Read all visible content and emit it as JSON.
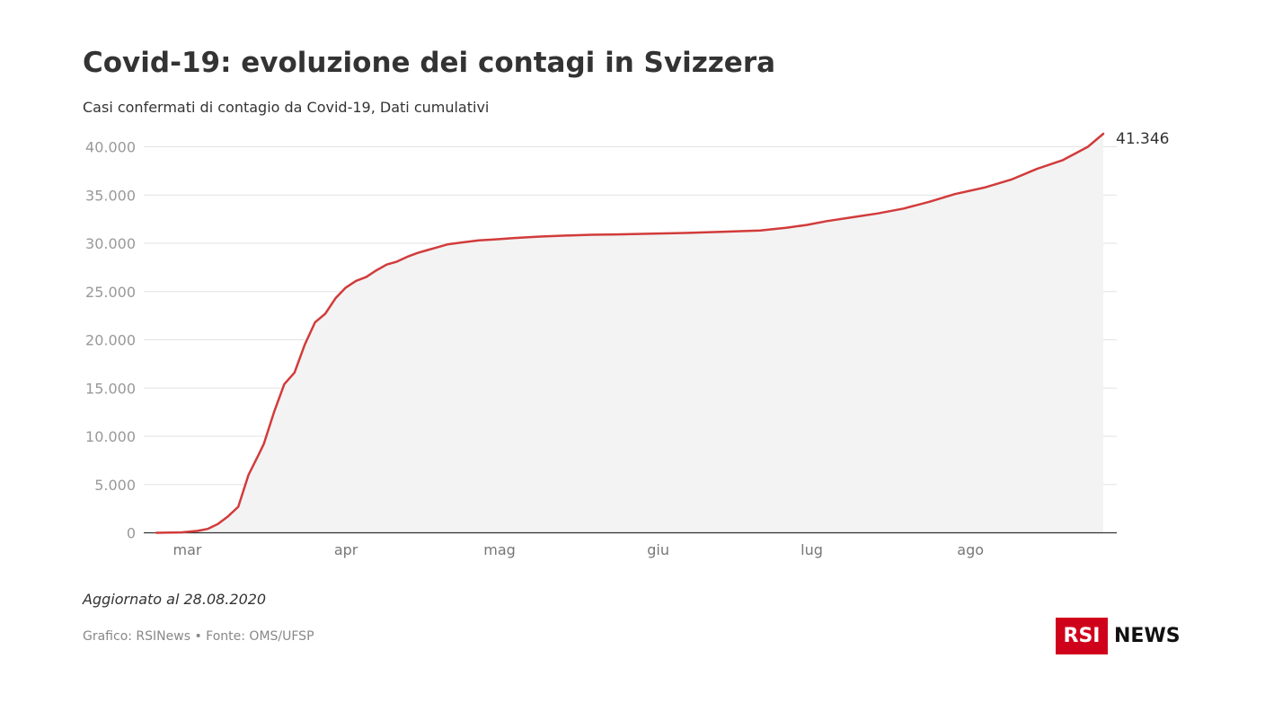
{
  "header": {
    "title": "Covid-19: evoluzione dei contagi in Svizzera",
    "subtitle": "Casi confermati di contagio da Covid-19, Dati cumulativi"
  },
  "footer": {
    "updated": "Aggiornato al 28.08.2020",
    "source": "Grafico: RSINews • Fonte: OMS/UFSP"
  },
  "logo": {
    "box_text": "RSI",
    "text": "NEWS",
    "color": "#d0021b"
  },
  "colors": {
    "line": "#d23b3b",
    "area": "#f3f3f3",
    "grid": "#e2e2e2",
    "axis": "#333333",
    "tick": "#999999"
  },
  "chart_data": {
    "type": "area",
    "title": "Covid-19: evoluzione dei contagi in Svizzera",
    "subtitle": "Casi confermati di contagio da Covid-19, Dati cumulativi",
    "xlabel": "",
    "ylabel": "",
    "ylim": [
      0,
      40000
    ],
    "xlim": [
      "2020-02-25",
      "2020-08-28"
    ],
    "y_ticks": [
      0,
      5000,
      10000,
      15000,
      20000,
      25000,
      30000,
      35000,
      40000
    ],
    "y_tick_labels": [
      "0",
      "5.000",
      "10.000",
      "15.000",
      "20.000",
      "25.000",
      "30.000",
      "35.000",
      "40.000"
    ],
    "x_ticks": [
      "2020-03-01",
      "2020-04-01",
      "2020-05-01",
      "2020-06-01",
      "2020-07-01",
      "2020-08-01"
    ],
    "x_tick_labels": [
      "mar",
      "apr",
      "mag",
      "giu",
      "lug",
      "ago"
    ],
    "grid": true,
    "end_label": "41.346",
    "series": [
      {
        "x": [
          "2020-02-25",
          "2020-03-01",
          "2020-03-04",
          "2020-03-06",
          "2020-03-08",
          "2020-03-10",
          "2020-03-12",
          "2020-03-14",
          "2020-03-16",
          "2020-03-17",
          "2020-03-19",
          "2020-03-21",
          "2020-03-23",
          "2020-03-25",
          "2020-03-27",
          "2020-03-29",
          "2020-03-31",
          "2020-04-02",
          "2020-04-04",
          "2020-04-06",
          "2020-04-08",
          "2020-04-10",
          "2020-04-12",
          "2020-04-14",
          "2020-04-16",
          "2020-04-18",
          "2020-04-20",
          "2020-04-22",
          "2020-04-25",
          "2020-04-28",
          "2020-05-01",
          "2020-05-05",
          "2020-05-10",
          "2020-05-15",
          "2020-05-20",
          "2020-05-25",
          "2020-06-01",
          "2020-06-08",
          "2020-06-15",
          "2020-06-22",
          "2020-06-27",
          "2020-07-01",
          "2020-07-05",
          "2020-07-10",
          "2020-07-15",
          "2020-07-20",
          "2020-07-25",
          "2020-07-30",
          "2020-08-05",
          "2020-08-10",
          "2020-08-15",
          "2020-08-20",
          "2020-08-25",
          "2020-08-28"
        ],
        "values": [
          1,
          50,
          200,
          400,
          900,
          1700,
          2700,
          6000,
          8100,
          9200,
          12500,
          15400,
          16600,
          19500,
          21800,
          22700,
          24300,
          25400,
          26100,
          26500,
          27200,
          27800,
          28100,
          28600,
          29000,
          29300,
          29600,
          29900,
          30100,
          30300,
          30400,
          30550,
          30700,
          30800,
          30880,
          30920,
          31000,
          31080,
          31200,
          31330,
          31600,
          31900,
          32300,
          32700,
          33100,
          33600,
          34300,
          35100,
          35800,
          36600,
          37700,
          38600,
          40000,
          41346
        ]
      }
    ]
  }
}
